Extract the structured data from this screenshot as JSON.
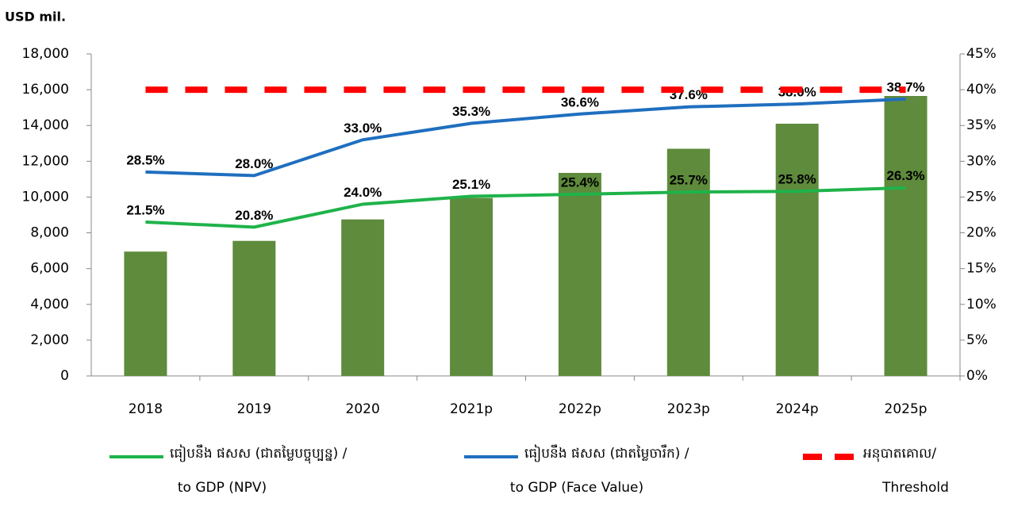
{
  "chart_data": {
    "type": "bar_line",
    "y_axis_label": "USD mil.",
    "categories": [
      "2018",
      "2019",
      "2020",
      "2021p",
      "2022p",
      "2023p",
      "2024p",
      "2025p"
    ],
    "series": [
      {
        "type": "bar",
        "color": "#5e8b3c",
        "values": [
          6950,
          7550,
          8750,
          9950,
          11350,
          12700,
          14100,
          15650
        ]
      },
      {
        "type": "line",
        "axis": "y2",
        "name": [
          "ធៀបនឹង ផសស (ជាតម្លៃបច្ចុប្បន្ន) /",
          "to GDP (NPV)"
        ],
        "color": "#1fb34a",
        "values": [
          21.5,
          20.8,
          24.0,
          25.1,
          25.4,
          25.7,
          25.8,
          26.3
        ],
        "value_labels": [
          "21.5%",
          "20.8%",
          "24.0%",
          "25.1%",
          "25.4%",
          "25.7%",
          "25.8%",
          "26.3%"
        ]
      },
      {
        "type": "line",
        "axis": "y2",
        "name": [
          "ធៀបនឹង ផសស (ជាតម្លៃចារឹក) /",
          "to GDP (Face Value)"
        ],
        "color": "#1f6fbf",
        "values": [
          28.5,
          28.0,
          33.0,
          35.3,
          36.6,
          37.6,
          38.0,
          38.7
        ],
        "value_labels": [
          "28.5%",
          "28.0%",
          "33.0%",
          "35.3%",
          "36.6%",
          "37.6%",
          "38.0%",
          "38.7%"
        ]
      },
      {
        "type": "dashed",
        "axis": "y2",
        "name": [
          "អនុបាតគោល/",
          "Threshold"
        ],
        "color": "#ff0000",
        "values": [
          40,
          40,
          40,
          40,
          40,
          40,
          40,
          40
        ]
      }
    ],
    "ylim": [
      0,
      18000
    ],
    "yticks": [
      0,
      {
        "value": 2000,
        "label": "2,000"
      },
      {
        "value": 4000,
        "label": "4,000"
      },
      {
        "value": 6000,
        "label": "6,000"
      },
      {
        "value": 8000,
        "label": "8,000"
      },
      {
        "value": 10000,
        "label": "10,000"
      },
      {
        "value": 12000,
        "label": "12,000"
      },
      {
        "value": 14000,
        "label": "14,000"
      },
      {
        "value": 16000,
        "label": "16,000"
      },
      {
        "value": 18000,
        "label": "18,000"
      }
    ],
    "y2lim": [
      0,
      45
    ],
    "y2ticks": [
      {
        "value": 0,
        "label": "0%"
      },
      {
        "value": 5,
        "label": "5%"
      },
      {
        "value": 10,
        "label": "10%"
      },
      {
        "value": 15,
        "label": "15%"
      },
      {
        "value": 20,
        "label": "20%"
      },
      {
        "value": 25,
        "label": "25%"
      },
      {
        "value": 30,
        "label": "30%"
      },
      {
        "value": 35,
        "label": "35%"
      },
      {
        "value": 40,
        "label": "40%"
      },
      {
        "value": 45,
        "label": "45%"
      }
    ],
    "grid": false,
    "legend": "bottom"
  }
}
